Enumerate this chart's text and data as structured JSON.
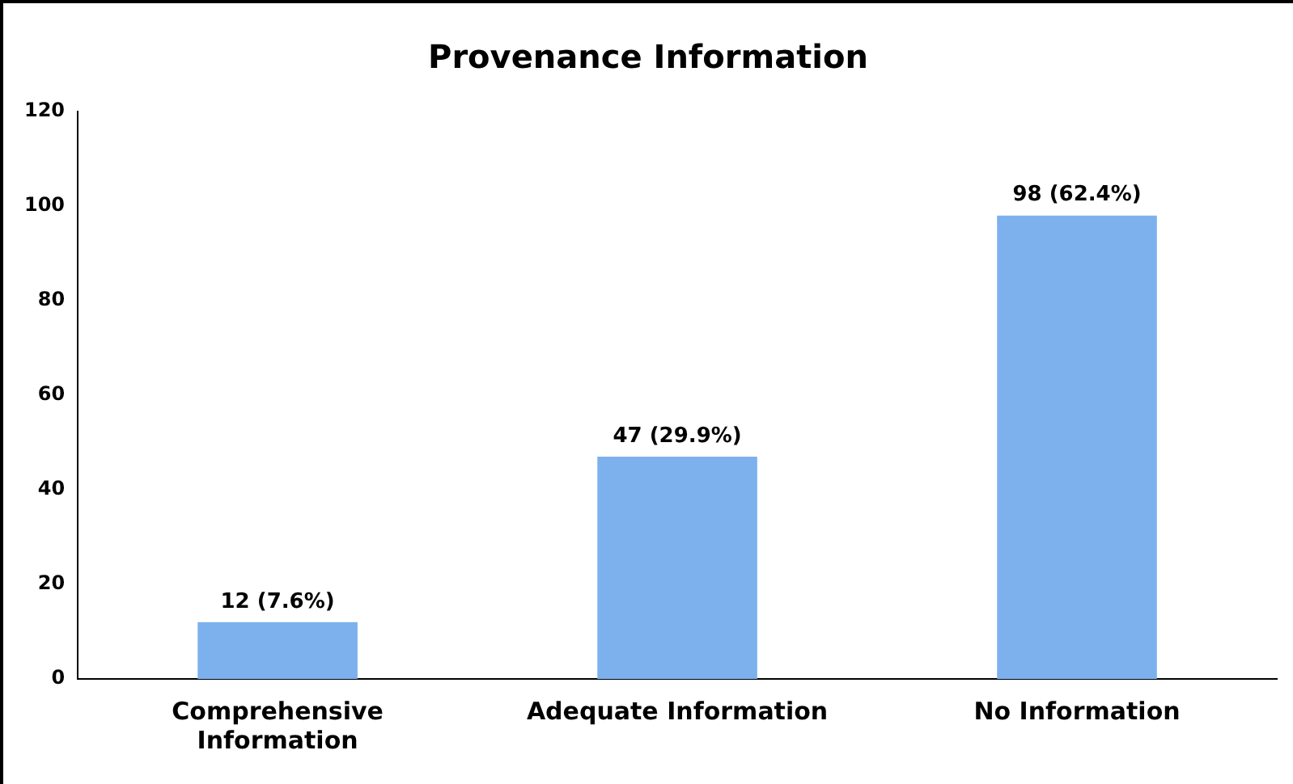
{
  "chart_data": {
    "type": "bar",
    "title": "Provenance Information",
    "categories": [
      "Comprehensive Information",
      "Adequate Information",
      "No Information"
    ],
    "values": [
      12,
      47,
      98
    ],
    "color": "#7db1ee",
    "value_labels": [
      "12 (7.6%)",
      "47 (29.9%)",
      "98 (62.4%)"
    ],
    "ylim": [
      0,
      120
    ],
    "yticks": [
      0,
      20,
      40,
      60,
      80,
      100,
      120
    ],
    "grid": false,
    "legend": false
  }
}
